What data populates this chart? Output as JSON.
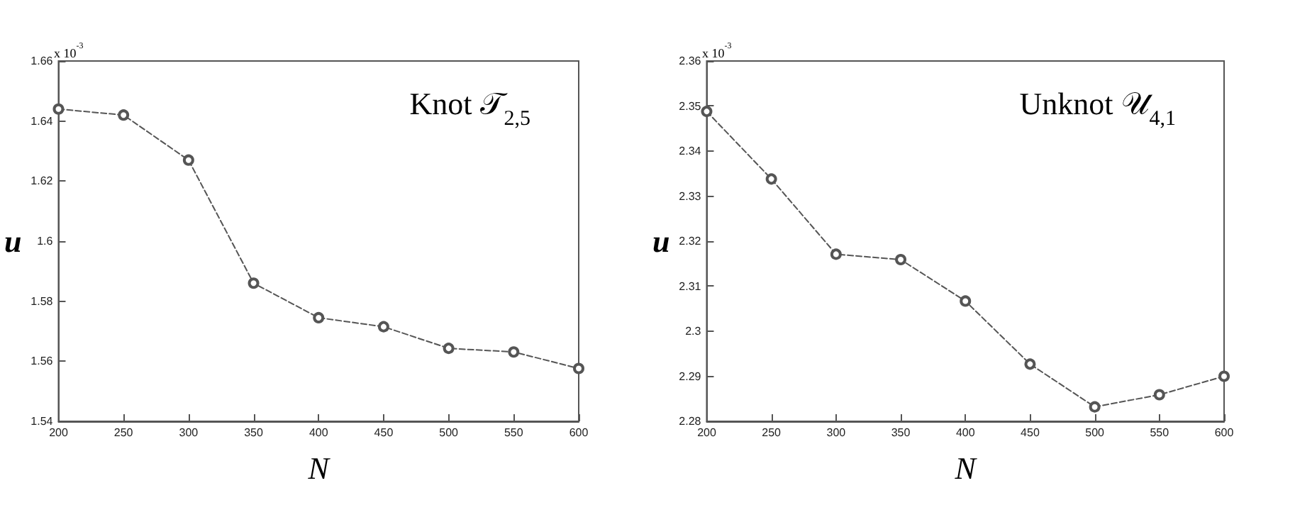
{
  "chart_data": [
    {
      "type": "line",
      "xlabel": "N",
      "ylabel": "u",
      "annotations": [
        "x 10$^{-3}$",
        "Knot 𝒯$_{2,5}$"
      ],
      "x": [
        200,
        250,
        300,
        350,
        400,
        450,
        500,
        550,
        600
      ],
      "series": [
        {
          "color": "#555555",
          "values": [
            1.644,
            1.642,
            1.627,
            1.586,
            1.5745,
            1.5715,
            1.5643,
            1.5631,
            1.5576
          ]
        }
      ],
      "xlim": [
        200,
        600
      ],
      "xticks": [
        200,
        250,
        300,
        350,
        400,
        450,
        500,
        550,
        600
      ],
      "ylim": [
        1.54,
        1.66
      ],
      "yticks": [
        1.54,
        1.56,
        1.58,
        1.6,
        1.62,
        1.64,
        1.66
      ],
      "marker": "circle",
      "line_style": "dashed"
    },
    {
      "type": "line",
      "xlabel": "N",
      "ylabel": "u",
      "annotations": [
        "x 10$^{-3}$",
        "Unknot 𝒰$_{4,1}$"
      ],
      "x": [
        200,
        250,
        300,
        350,
        400,
        450,
        500,
        550,
        600
      ],
      "series": [
        {
          "color": "#555555",
          "values": [
            2.3488,
            2.3338,
            2.3171,
            2.3159,
            2.3067,
            2.2927,
            2.2832,
            2.2859,
            2.29
          ]
        }
      ],
      "xlim": [
        200,
        600
      ],
      "xticks": [
        200,
        250,
        300,
        350,
        400,
        450,
        500,
        550,
        600
      ],
      "ylim": [
        2.28,
        2.36
      ],
      "yticks": [
        2.28,
        2.29,
        2.3,
        2.31,
        2.32,
        2.33,
        2.34,
        2.35,
        2.36
      ],
      "marker": "circle",
      "line_style": "dashed"
    }
  ]
}
